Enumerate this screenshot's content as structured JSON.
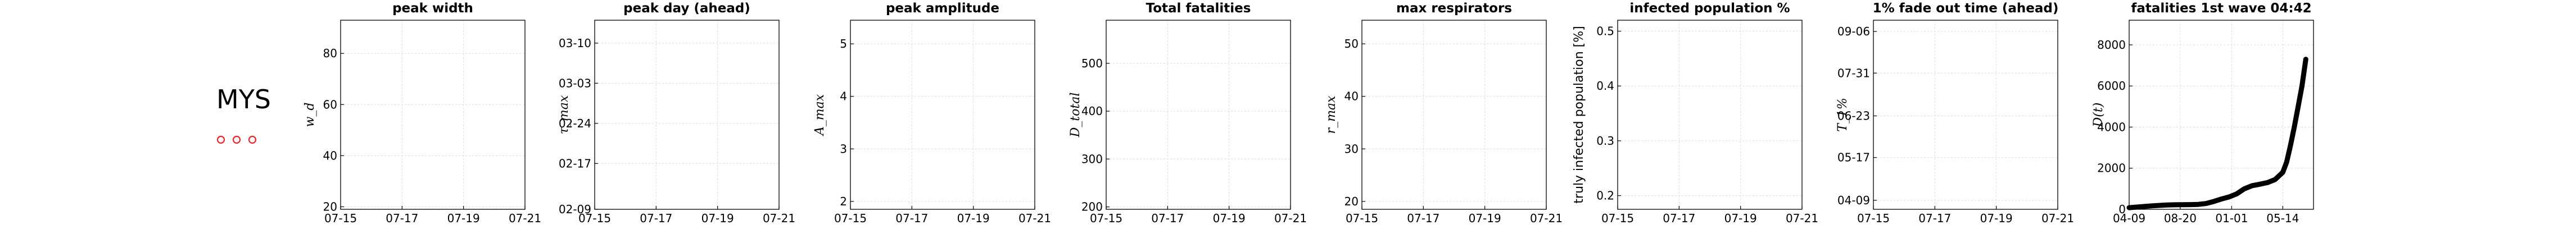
{
  "country": "MYS",
  "marker_color": "#e8262a",
  "chart_data": [
    {
      "type": "line",
      "title": "peak width",
      "ylabel": "w_d",
      "ylabel_style": "math",
      "x_ticks": [
        "07-15",
        "07-17",
        "07-19",
        "07-21"
      ],
      "y_ticks": [
        "20",
        "40",
        "60",
        "80"
      ],
      "ylim": [
        19,
        93
      ],
      "y_tick_values": [
        20,
        40,
        60,
        80
      ],
      "grid": true,
      "series": []
    },
    {
      "type": "line",
      "title": "peak day (ahead)",
      "ylabel": "τ_max",
      "ylabel_style": "math",
      "x_ticks": [
        "07-15",
        "07-17",
        "07-19",
        "07-21"
      ],
      "y_ticks": [
        "02-09",
        "02-17",
        "02-24",
        "03-03",
        "03-10"
      ],
      "ylim": [
        0,
        33
      ],
      "y_tick_values": [
        0,
        8,
        15,
        22,
        29
      ],
      "grid": true,
      "series": []
    },
    {
      "type": "line",
      "title": "peak amplitude",
      "ylabel": "A_max",
      "ylabel_style": "math",
      "x_ticks": [
        "07-15",
        "07-17",
        "07-19",
        "07-21"
      ],
      "y_ticks": [
        "2",
        "3",
        "4",
        "5"
      ],
      "ylim": [
        1.85,
        5.45
      ],
      "y_tick_values": [
        2,
        3,
        4,
        5
      ],
      "grid": true,
      "series": []
    },
    {
      "type": "line",
      "title": "Total fatalities",
      "ylabel": "D_total",
      "ylabel_style": "math",
      "x_ticks": [
        "07-15",
        "07-17",
        "07-19",
        "07-21"
      ],
      "y_ticks": [
        "200",
        "300",
        "400",
        "500"
      ],
      "ylim": [
        195,
        590
      ],
      "y_tick_values": [
        200,
        300,
        400,
        500
      ],
      "grid": true,
      "series": []
    },
    {
      "type": "line",
      "title": "max respirators",
      "ylabel": "r_max",
      "ylabel_style": "math",
      "x_ticks": [
        "07-15",
        "07-17",
        "07-19",
        "07-21"
      ],
      "y_ticks": [
        "20",
        "30",
        "40",
        "50"
      ],
      "ylim": [
        18.5,
        54.5
      ],
      "y_tick_values": [
        20,
        30,
        40,
        50
      ],
      "grid": true,
      "series": []
    },
    {
      "type": "line",
      "title": "infected population %",
      "ylabel": "truly infected population [%]",
      "ylabel_style": "plain",
      "x_ticks": [
        "07-15",
        "07-17",
        "07-19",
        "07-21"
      ],
      "y_ticks": [
        "0.2",
        "0.3",
        "0.4",
        "0.5"
      ],
      "ylim": [
        0.175,
        0.52
      ],
      "y_tick_values": [
        0.2,
        0.3,
        0.4,
        0.5
      ],
      "grid": true,
      "series": []
    },
    {
      "type": "line",
      "title": "1% fade out time (ahead)",
      "ylabel": "T_1%",
      "ylabel_style": "math",
      "x_ticks": [
        "07-15",
        "07-17",
        "07-19",
        "07-21"
      ],
      "y_ticks": [
        "04-09",
        "05-17",
        "06-23",
        "07-31",
        "09-06"
      ],
      "ylim": [
        -8,
        160
      ],
      "y_tick_values": [
        0,
        38,
        75,
        113,
        150
      ],
      "grid": true,
      "series": []
    },
    {
      "type": "line",
      "title": "fatalities 1st wave 04:42",
      "ylabel": "D(t)",
      "ylabel_style": "math",
      "x_ticks": [
        "04-09",
        "08-20",
        "01-01",
        "05-14"
      ],
      "y_ticks": [
        "0",
        "2000",
        "4000",
        "6000",
        "8000"
      ],
      "ylim": [
        0,
        9200
      ],
      "y_tick_values": [
        0,
        2000,
        4000,
        6000,
        8000
      ],
      "xlim": [
        0,
        480
      ],
      "x_tick_values": [
        0,
        133,
        267,
        400
      ],
      "grid": true,
      "series": [
        {
          "x": [
            0,
            20,
            40,
            60,
            80,
            100,
            120,
            140,
            160,
            180,
            200,
            220,
            240,
            260,
            280,
            300,
            320,
            340,
            360,
            380,
            400,
            410,
            420,
            430,
            440,
            450,
            460
          ],
          "y": [
            80,
            110,
            140,
            170,
            190,
            210,
            220,
            225,
            230,
            240,
            280,
            380,
            500,
            600,
            750,
            1000,
            1150,
            1220,
            1300,
            1450,
            1800,
            2300,
            3100,
            4000,
            5000,
            6000,
            7300
          ]
        }
      ]
    }
  ]
}
